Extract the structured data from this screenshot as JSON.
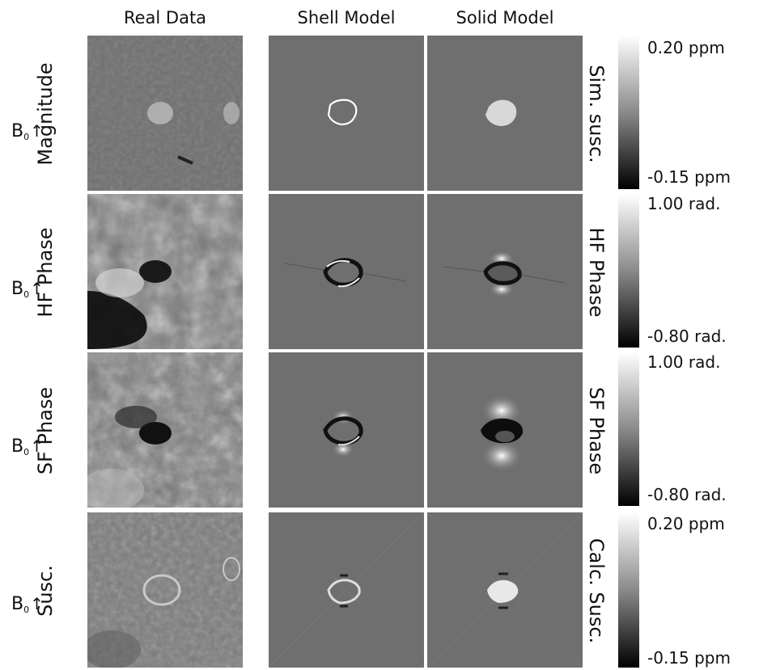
{
  "columns": [
    "Real Data",
    "Shell Model",
    "Solid Model"
  ],
  "rows": [
    {
      "field_symbol": "B",
      "field_subscript": "0",
      "field_arrow": "↑",
      "label": "Magnitude",
      "right_label": "Sim. susc.",
      "scale_max": "0.20 ppm",
      "scale_min": "-0.15 ppm"
    },
    {
      "field_symbol": "B",
      "field_subscript": "0",
      "field_arrow": "↑",
      "label": "HF Phase",
      "right_label": "HF Phase",
      "scale_max": "1.00 rad.",
      "scale_min": "-0.80 rad."
    },
    {
      "field_symbol": "B",
      "field_subscript": "0",
      "field_arrow": "↑",
      "label": "SF Phase",
      "right_label": "SF Phase",
      "scale_max": "1.00 rad.",
      "scale_min": "-0.80 rad."
    },
    {
      "field_symbol": "B",
      "field_subscript": "0",
      "field_arrow": "↑",
      "label": "Susc.",
      "right_label": "Calc. Susc.",
      "scale_max": "0.20 ppm",
      "scale_min": "-0.15 ppm"
    }
  ],
  "colors": {
    "panel_gray": "#6f6f6f",
    "background": "#ffffff"
  }
}
